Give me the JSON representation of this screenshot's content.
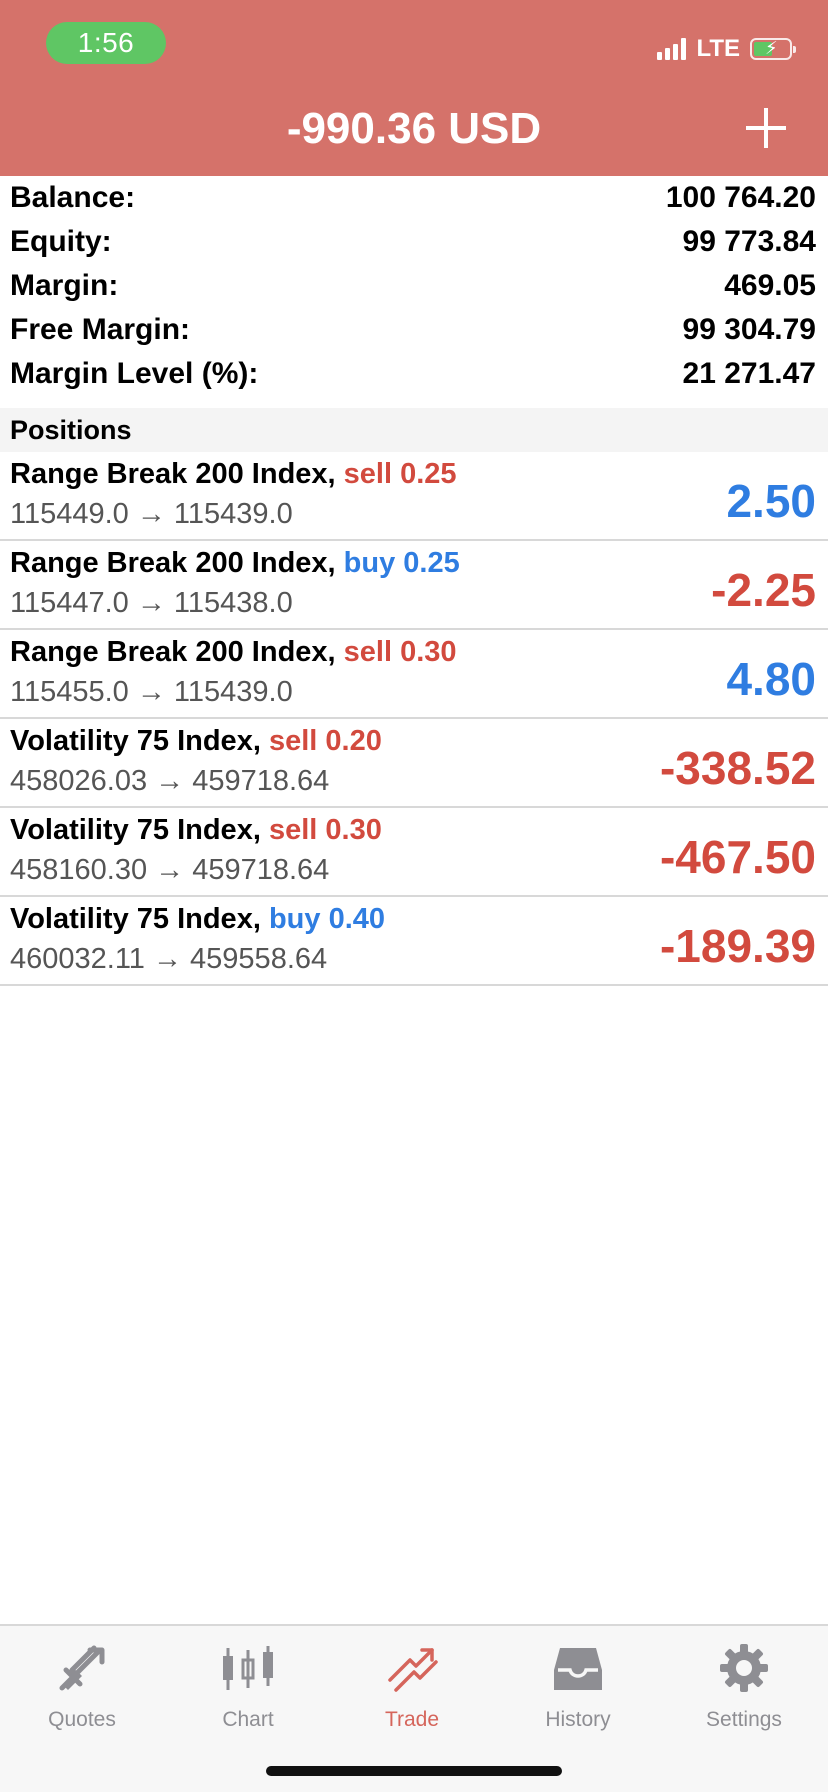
{
  "status_bar": {
    "time": "1:56",
    "network": "LTE"
  },
  "header": {
    "title": "-990.36 USD"
  },
  "summary": [
    {
      "label": "Balance:",
      "value": "100 764.20"
    },
    {
      "label": "Equity:",
      "value": "99 773.84"
    },
    {
      "label": "Margin:",
      "value": "469.05"
    },
    {
      "label": "Free Margin:",
      "value": "99 304.79"
    },
    {
      "label": "Margin Level (%):",
      "value": "21 271.47"
    }
  ],
  "positions_header": "Positions",
  "positions": [
    {
      "symbol": "Range Break 200 Index,",
      "side": "sell 0.25",
      "prices": "115449.0 → 115439.0",
      "profit": "2.50"
    },
    {
      "symbol": "Range Break 200 Index,",
      "side": "buy 0.25",
      "prices": "115447.0 → 115438.0",
      "profit": "-2.25"
    },
    {
      "symbol": "Range Break 200 Index,",
      "side": "sell 0.30",
      "prices": "115455.0 → 115439.0",
      "profit": "4.80"
    },
    {
      "symbol": "Volatility 75 Index,",
      "side": "sell 0.20",
      "prices": "458026.03 → 459718.64",
      "profit": "-338.52"
    },
    {
      "symbol": "Volatility 75 Index,",
      "side": "sell 0.30",
      "prices": "458160.30 → 459718.64",
      "profit": "-467.50"
    },
    {
      "symbol": "Volatility 75 Index,",
      "side": "buy 0.40",
      "prices": "460032.11 → 459558.64",
      "profit": "-189.39"
    }
  ],
  "tabs": [
    {
      "label": "Quotes",
      "icon": "quotes-icon"
    },
    {
      "label": "Chart",
      "icon": "chart-icon"
    },
    {
      "label": "Trade",
      "icon": "trade-icon"
    },
    {
      "label": "History",
      "icon": "history-icon"
    },
    {
      "label": "Settings",
      "icon": "gear-icon"
    }
  ],
  "colors": {
    "header_bg": "#d5726a",
    "sell": "#d24a3e",
    "buy": "#2f7de1",
    "active_tab": "#d5655b",
    "inactive_tab": "#8e8e93",
    "time_pill": "#5fc664"
  }
}
